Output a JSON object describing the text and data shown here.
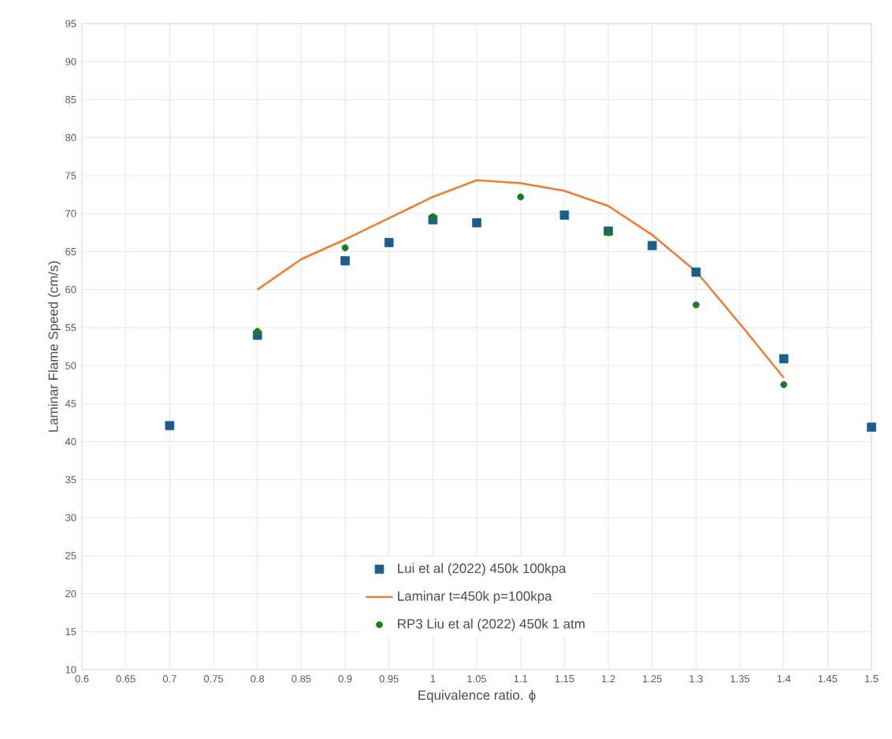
{
  "chart_data": {
    "type": "scatter",
    "xlabel": "Equivalence ratio. ϕ",
    "ylabel": "Laminar Flame Speed (cm/s)",
    "xlim": [
      0.6,
      1.5
    ],
    "xticks": [
      0.6,
      0.65,
      0.7,
      0.75,
      0.8,
      0.85,
      0.9,
      0.95,
      1,
      1.05,
      1.1,
      1.15,
      1.2,
      1.25,
      1.3,
      1.35,
      1.4,
      1.45,
      1.5
    ],
    "ylim": [
      10,
      95
    ],
    "yticks": [
      10,
      15,
      20,
      25,
      30,
      35,
      40,
      45,
      50,
      55,
      60,
      65,
      70,
      75,
      80,
      85,
      90,
      95
    ],
    "grid": true,
    "legend": "bottom",
    "series": [
      {
        "name": "Lui et al (2022) 450k 100kpa",
        "marker": "square",
        "color": "#1b5e8a",
        "x": [
          0.7,
          0.8,
          0.9,
          0.95,
          1.0,
          1.05,
          1.15,
          1.2,
          1.25,
          1.3,
          1.4,
          1.5
        ],
        "values": [
          42.1,
          54.0,
          63.8,
          66.2,
          69.2,
          68.8,
          69.8,
          67.7,
          65.8,
          62.3,
          50.9,
          41.9
        ]
      },
      {
        "name": "Laminar t=450k p=100kpa",
        "type": "line",
        "marker": "none",
        "color": "#ed7d31",
        "x": [
          0.8,
          0.85,
          0.9,
          0.95,
          1.0,
          1.05,
          1.1,
          1.15,
          1.2,
          1.25,
          1.3,
          1.35,
          1.4
        ],
        "values": [
          60.0,
          64.0,
          66.6,
          69.4,
          72.2,
          74.4,
          74.0,
          73.0,
          71.0,
          67.2,
          62.4,
          55.5,
          48.4
        ]
      },
      {
        "name": "RP3 Liu et al (2022) 450k 1 atm",
        "marker": "circle",
        "color": "#1e7b1e",
        "x": [
          0.8,
          0.9,
          1.0,
          1.1,
          1.2,
          1.3,
          1.4
        ],
        "values": [
          54.5,
          65.5,
          69.6,
          72.2,
          67.5,
          58.0,
          47.5
        ]
      }
    ]
  }
}
